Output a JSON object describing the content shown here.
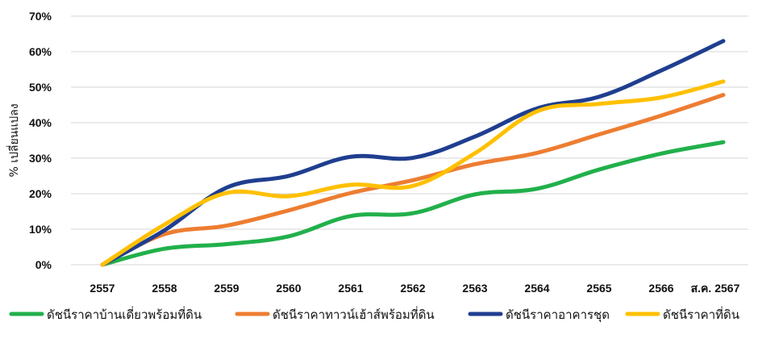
{
  "chart_data": {
    "type": "line",
    "title": "",
    "xlabel": "",
    "ylabel": "% เปลี่ยนแปลง",
    "ylim": [
      0,
      70
    ],
    "yticks": [
      "0%",
      "10%",
      "20%",
      "30%",
      "40%",
      "50%",
      "60%",
      "70%"
    ],
    "ytick_values": [
      0,
      10,
      20,
      30,
      40,
      50,
      60,
      70
    ],
    "categories": [
      "2557",
      "2558",
      "2559",
      "2560",
      "2561",
      "2562",
      "2563",
      "2564",
      "2565",
      "2566",
      "ส.ค. 2567"
    ],
    "grid": true,
    "legend_position": "bottom",
    "series": [
      {
        "name": "ดัชนีราคาบ้านเดี่ยวพร้อมที่ดิน",
        "color": "#21b04b",
        "values": [
          0,
          4.5,
          5.8,
          8,
          13.7,
          14.5,
          19.8,
          21.4,
          26.8,
          31.3,
          34.5
        ]
      },
      {
        "name": "ดัชนีราคาทาวน์เฮ้าส์พร้อมที่ดิน",
        "color": "#ed7d31",
        "values": [
          0,
          8.6,
          11,
          15.3,
          20.2,
          23.8,
          28.3,
          31.5,
          36.7,
          42,
          47.8
        ]
      },
      {
        "name": "ดัชนีราคาอาคารชุด",
        "color": "#1f3e8f",
        "values": [
          0,
          9.7,
          21.7,
          25,
          30.4,
          30.1,
          36.1,
          44,
          47.3,
          54.7,
          63
        ]
      },
      {
        "name": "ดัชนีราคาที่ดิน",
        "color": "#ffc000",
        "values": [
          0,
          11.3,
          20.2,
          19.3,
          22.5,
          22.2,
          31.4,
          43.2,
          45.3,
          47.1,
          51.6
        ]
      }
    ]
  }
}
